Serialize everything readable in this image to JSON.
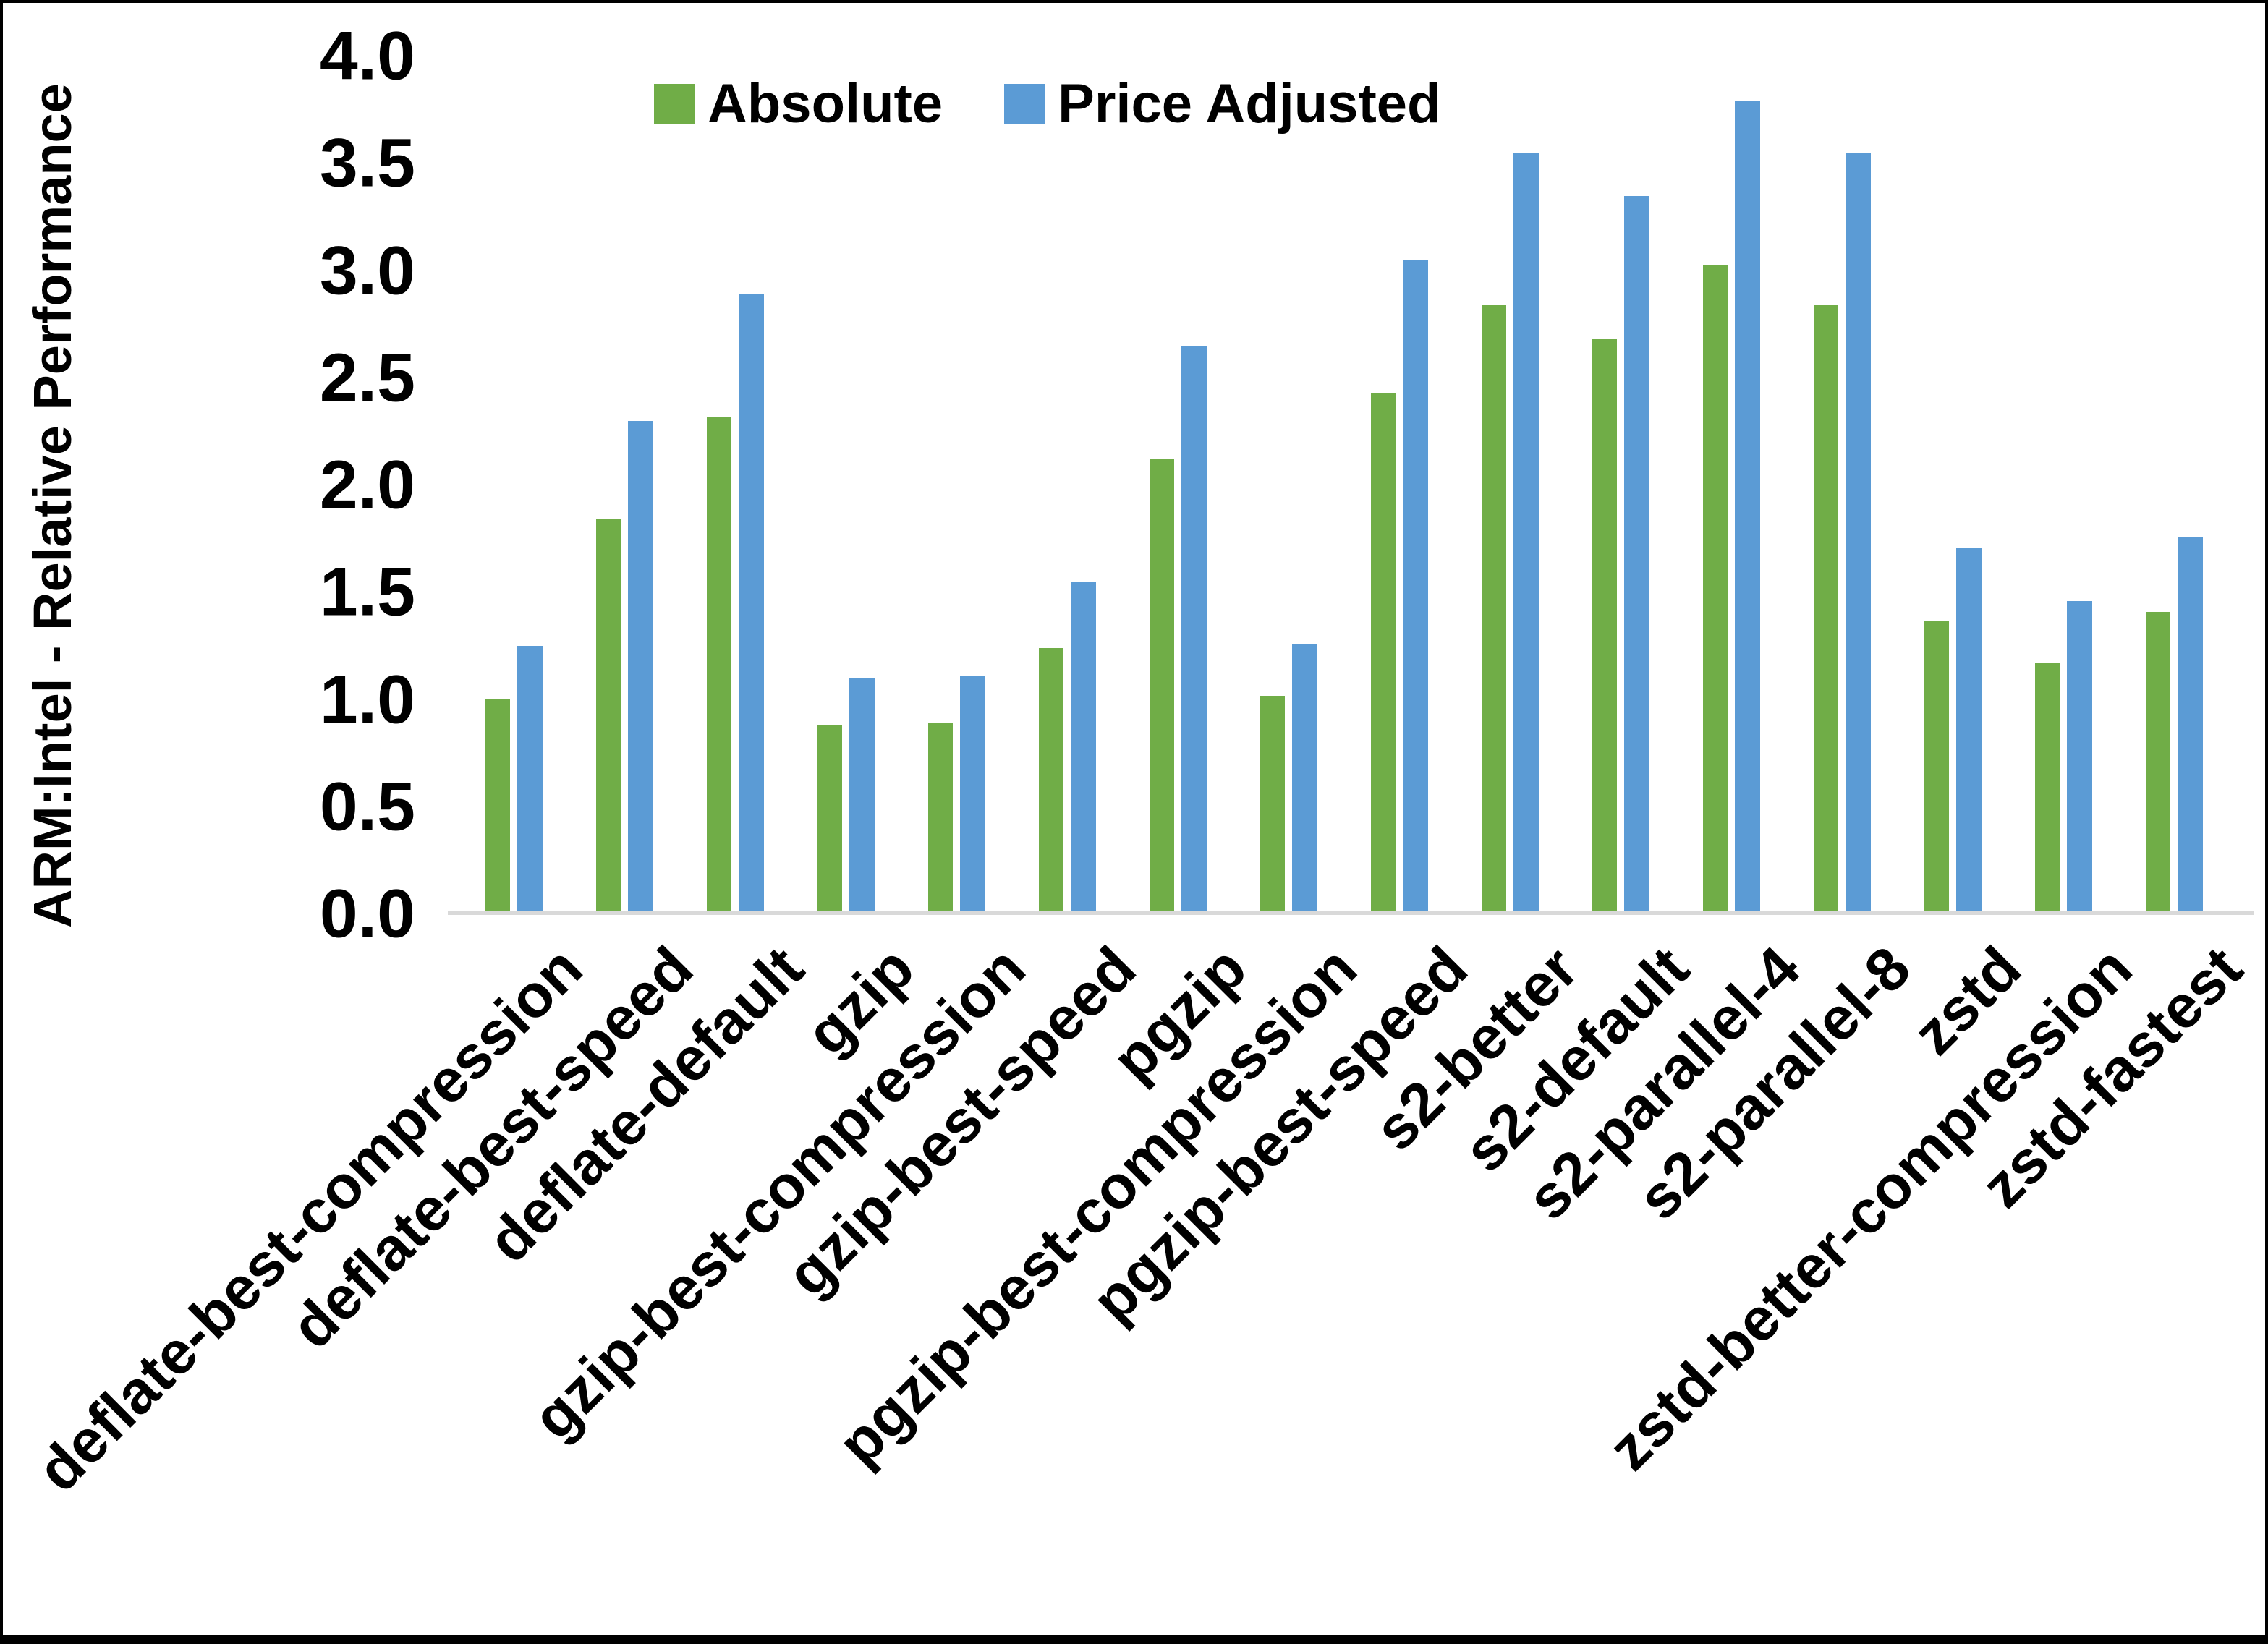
{
  "chart_data": {
    "type": "bar",
    "title": "",
    "xlabel": "",
    "ylabel": "ARM:Intel - Relative Performance",
    "ylim": [
      0.0,
      4.0
    ],
    "ytick_step": 0.5,
    "yticks": [
      "0.0",
      "0.5",
      "1.0",
      "1.5",
      "2.0",
      "2.5",
      "3.0",
      "3.5",
      "4.0"
    ],
    "grid": false,
    "legend_position": "top-center",
    "categories": [
      "deflate-best-compression",
      "deflate-best-speed",
      "deflate-default",
      "gzip",
      "gzip-best-compression",
      "gzip-best-speed",
      "pgzip",
      "pgzip-best-compression",
      "pgzip-best-speed",
      "s2-better",
      "s2-default",
      "s2-parallel-4",
      "s2-parallel-8",
      "zstd",
      "zstd-better-compression",
      "zstd-fastest"
    ],
    "series": [
      {
        "name": "Absolute",
        "color": "#70AD47",
        "values": [
          1.0,
          1.84,
          2.32,
          0.88,
          0.89,
          1.24,
          2.12,
          1.02,
          2.43,
          2.84,
          2.68,
          3.03,
          2.84,
          1.37,
          1.17,
          1.41
        ]
      },
      {
        "name": "Price Adjusted",
        "color": "#5B9BD5",
        "values": [
          1.25,
          2.3,
          2.89,
          1.1,
          1.11,
          1.55,
          2.65,
          1.26,
          3.05,
          3.55,
          3.35,
          3.79,
          3.55,
          1.71,
          1.46,
          1.76
        ]
      }
    ],
    "axis_line_color": "#D9D9D9",
    "text_color": "#000000"
  }
}
